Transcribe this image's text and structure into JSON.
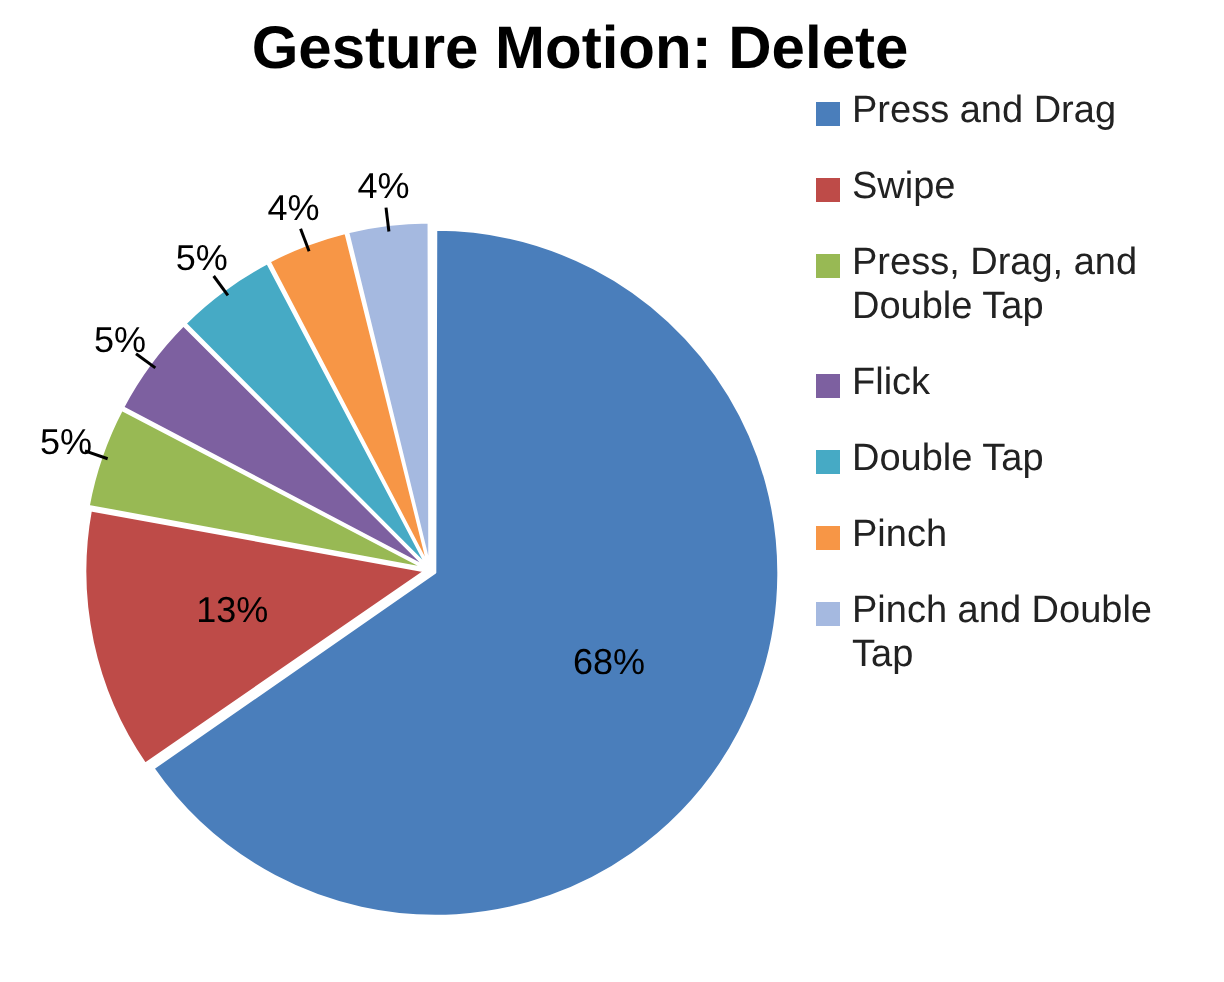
{
  "chart_data": {
    "type": "pie",
    "title": "Gesture Motion: Delete",
    "categories": [
      "Press and Drag",
      "Swipe",
      "Press, Drag, and Double Tap",
      "Flick",
      "Double Tap",
      "Pinch",
      "Pinch and Double Tap"
    ],
    "values": [
      68,
      13,
      5,
      5,
      5,
      4,
      4
    ],
    "value_labels": [
      "68%",
      "13%",
      "5%",
      "5%",
      "5%",
      "4%",
      "4%"
    ],
    "colors": [
      "#4a7ebb",
      "#be4b48",
      "#98b954",
      "#7d60a0",
      "#46aac5",
      "#f79646",
      "#a5b9e0"
    ],
    "legend": "right"
  }
}
